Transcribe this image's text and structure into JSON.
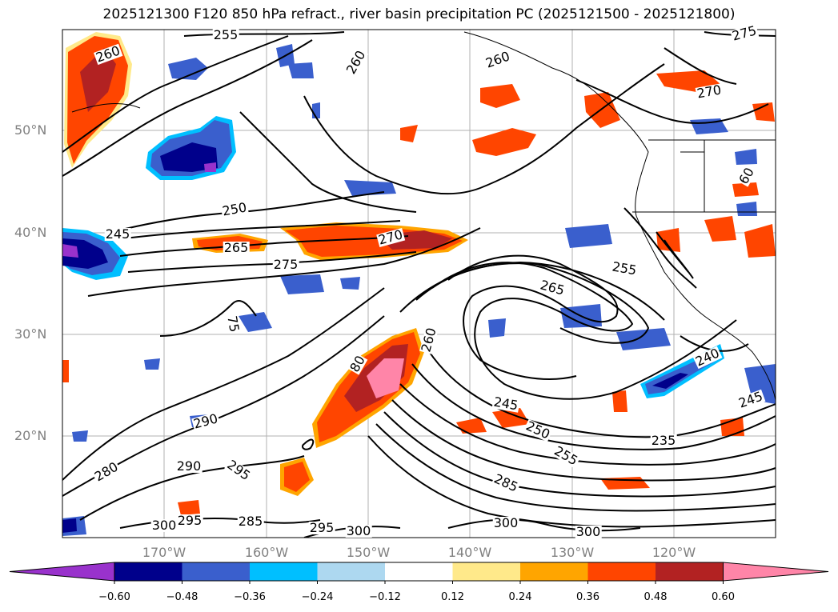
{
  "title": "2025121300 F120 850 hPa refract., river basin precipitation PC (2025121500 - 2025121800)",
  "lat_labels": [
    "50°N",
    "40°N",
    "30°N",
    "20°N"
  ],
  "lon_labels": [
    "170°W",
    "160°W",
    "150°W",
    "140°W",
    "130°W",
    "120°W"
  ],
  "colorbar": {
    "ticks": [
      "−0.60",
      "−0.48",
      "−0.36",
      "−0.24",
      "−0.12",
      "0.12",
      "0.24",
      "0.36",
      "0.48",
      "0.60"
    ],
    "colors": [
      "#9932CC",
      "#00008B",
      "#3A5FCD",
      "#00BFFF",
      "#ADD8F0",
      "#FFFFFF",
      "#FFE98A",
      "#FFA500",
      "#FF4500",
      "#B22222",
      "#FF85A8"
    ]
  },
  "contour_labels": [
    "255",
    "260",
    "260",
    "260",
    "275",
    "270",
    "250",
    "245",
    "265",
    "275",
    "270",
    "255",
    "265",
    "75",
    "80",
    "260",
    "245",
    "250",
    "255",
    "285",
    "290",
    "280",
    "290",
    "295",
    "300",
    "295",
    "285",
    "295",
    "300",
    "300",
    "300",
    "235",
    "240",
    "245",
    "60"
  ]
}
